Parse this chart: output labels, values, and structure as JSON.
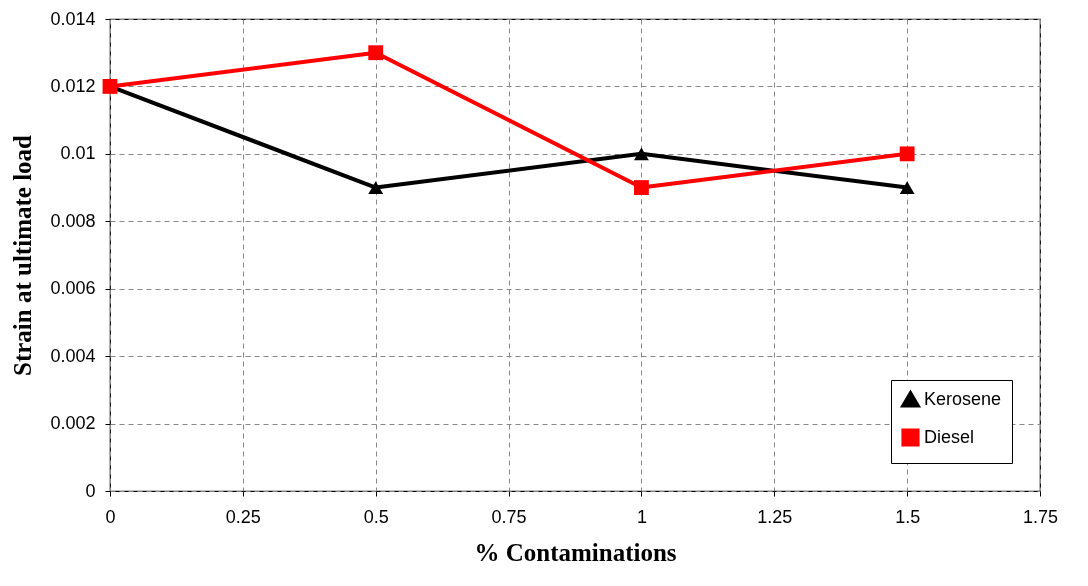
{
  "chart_data": {
    "type": "line",
    "xlabel": "% Contaminations",
    "ylabel": "Strain at ultimate load",
    "x": [
      0,
      0.5,
      1,
      1.5
    ],
    "series": [
      {
        "name": "Kerosene",
        "color": "#000000",
        "marker": "triangle",
        "values": [
          0.012,
          0.009,
          0.01,
          0.009
        ]
      },
      {
        "name": "Diesel",
        "color": "#ff0000",
        "marker": "square",
        "values": [
          0.012,
          0.013,
          0.009,
          0.01
        ]
      }
    ],
    "xlim": [
      0,
      1.75
    ],
    "xticks": [
      0,
      0.25,
      0.5,
      0.75,
      1,
      1.25,
      1.5,
      1.75
    ],
    "ylim": [
      0,
      0.014
    ],
    "yticks": [
      0,
      0.002,
      0.004,
      0.006,
      0.008,
      0.01,
      0.012,
      0.014
    ],
    "grid": true,
    "legend": "bottom right"
  }
}
